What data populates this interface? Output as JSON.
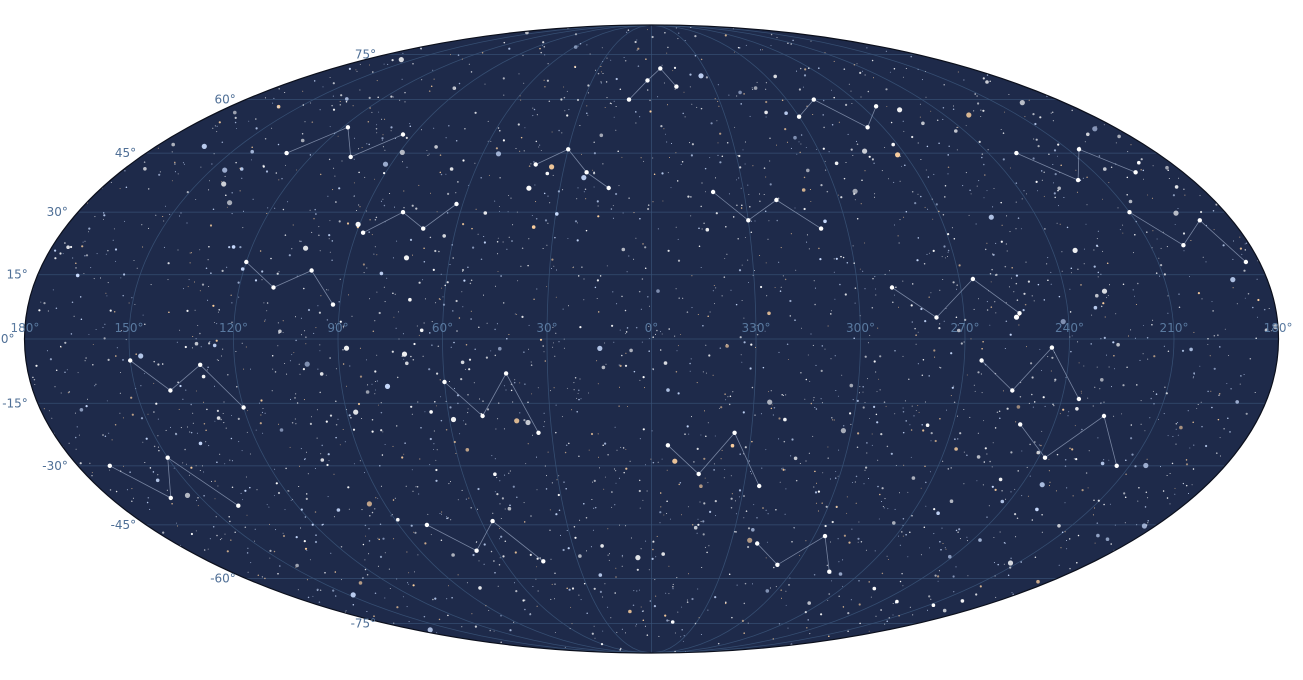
{
  "map": {
    "projection": "mollweide",
    "colors": {
      "background": "#ffffff",
      "sky": "#1e2a4a",
      "outline": "#0b0f1c",
      "graticule": "#3a5478",
      "constellation_lines": "#8d9bb6",
      "label_lat": "#4f6f96",
      "label_lon": "#5a7aa0",
      "star_white": "#ffffff",
      "star_blue": "#c9dcff",
      "star_orange": "#ffd2a0"
    },
    "graticule": {
      "latitudes": [
        -75,
        -60,
        -45,
        -30,
        -15,
        0,
        15,
        30,
        45,
        60,
        75
      ],
      "longitudes": [
        -180,
        -150,
        -120,
        -90,
        -60,
        -30,
        0,
        30,
        60,
        90,
        120,
        150,
        180
      ]
    },
    "lat_labels": [
      {
        "lat": 75,
        "text": "75°"
      },
      {
        "lat": 60,
        "text": "60°"
      },
      {
        "lat": 45,
        "text": "45°"
      },
      {
        "lat": 30,
        "text": "30°"
      },
      {
        "lat": 15,
        "text": "15°"
      },
      {
        "lat": 0,
        "text": "0°"
      },
      {
        "lat": -15,
        "text": "-15°"
      },
      {
        "lat": -30,
        "text": "-30°"
      },
      {
        "lat": -45,
        "text": "-45°"
      },
      {
        "lat": -60,
        "text": "-60°"
      },
      {
        "lat": -75,
        "text": "-75°"
      }
    ],
    "lon_labels": [
      {
        "lon": -180,
        "text": "180°"
      },
      {
        "lon": -150,
        "text": "150°"
      },
      {
        "lon": -120,
        "text": "120°"
      },
      {
        "lon": -90,
        "text": "90°"
      },
      {
        "lon": -60,
        "text": "60°"
      },
      {
        "lon": -30,
        "text": "30°"
      },
      {
        "lon": 0,
        "text": "0°"
      },
      {
        "lon": 30,
        "text": "330°"
      },
      {
        "lon": 60,
        "text": "300°"
      },
      {
        "lon": 90,
        "text": "270°"
      },
      {
        "lon": 120,
        "text": "240°"
      },
      {
        "lon": 150,
        "text": "210°"
      },
      {
        "lon": 180,
        "text": "180°"
      }
    ],
    "constellations": [
      [
        [
          -10,
          60
        ],
        [
          -2,
          66
        ],
        [
          5,
          70
        ],
        [
          12,
          64
        ]
      ],
      [
        [
          -40,
          42
        ],
        [
          -30,
          46
        ],
        [
          -22,
          40
        ],
        [
          -14,
          36
        ]
      ],
      [
        [
          -88,
          25
        ],
        [
          -78,
          30
        ],
        [
          -70,
          26
        ],
        [
          -62,
          32
        ]
      ],
      [
        [
          -120,
          18
        ],
        [
          -110,
          12
        ],
        [
          -100,
          16
        ],
        [
          -92,
          8
        ]
      ],
      [
        [
          -150,
          -5
        ],
        [
          -140,
          -12
        ],
        [
          -130,
          -6
        ],
        [
          -120,
          -16
        ]
      ],
      [
        [
          -60,
          -10
        ],
        [
          -50,
          -18
        ],
        [
          -42,
          -8
        ],
        [
          -34,
          -22
        ]
      ],
      [
        [
          20,
          35
        ],
        [
          30,
          28
        ],
        [
          40,
          33
        ],
        [
          52,
          26
        ]
      ],
      [
        [
          70,
          12
        ],
        [
          82,
          5
        ],
        [
          94,
          14
        ],
        [
          106,
          6
        ]
      ],
      [
        [
          110,
          -20
        ],
        [
          122,
          -28
        ],
        [
          134,
          -18
        ],
        [
          146,
          -30
        ]
      ],
      [
        [
          150,
          30
        ],
        [
          160,
          22
        ],
        [
          170,
          28
        ],
        [
          176,
          18
        ]
      ],
      [
        [
          40,
          -50
        ],
        [
          52,
          -56
        ],
        [
          64,
          -48
        ],
        [
          76,
          -58
        ]
      ],
      [
        [
          -80,
          -45
        ],
        [
          -68,
          -52
        ],
        [
          -56,
          -44
        ],
        [
          -44,
          -55
        ]
      ],
      [
        [
          5,
          -25
        ],
        [
          15,
          -32
        ],
        [
          25,
          -22
        ],
        [
          35,
          -35
        ]
      ],
      [
        [
          60,
          55
        ],
        [
          72,
          60
        ],
        [
          84,
          52
        ],
        [
          96,
          58
        ]
      ],
      [
        [
          -130,
          45
        ],
        [
          -118,
          52
        ],
        [
          -106,
          44
        ],
        [
          -94,
          50
        ]
      ],
      [
        [
          130,
          45
        ],
        [
          142,
          38
        ],
        [
          154,
          46
        ],
        [
          164,
          40
        ]
      ],
      [
        [
          -170,
          -30
        ],
        [
          -160,
          -38
        ],
        [
          -150,
          -28
        ],
        [
          -140,
          -40
        ]
      ],
      [
        [
          95,
          -5
        ],
        [
          105,
          -12
        ],
        [
          115,
          -2
        ],
        [
          125,
          -14
        ]
      ]
    ]
  }
}
